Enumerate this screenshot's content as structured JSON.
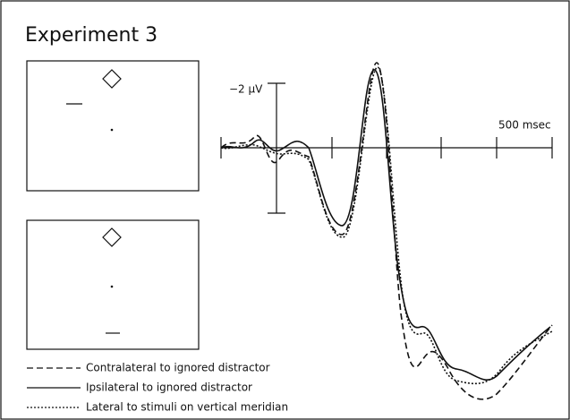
{
  "title": "Experiment 3",
  "axis": {
    "y_label": "−2 µV",
    "x_label": "500 msec"
  },
  "legend": [
    "Contralateral to ignored distractor",
    "Ipsilateral to ignored distractor",
    "Lateral to stimuli on vertical meridian"
  ]
}
